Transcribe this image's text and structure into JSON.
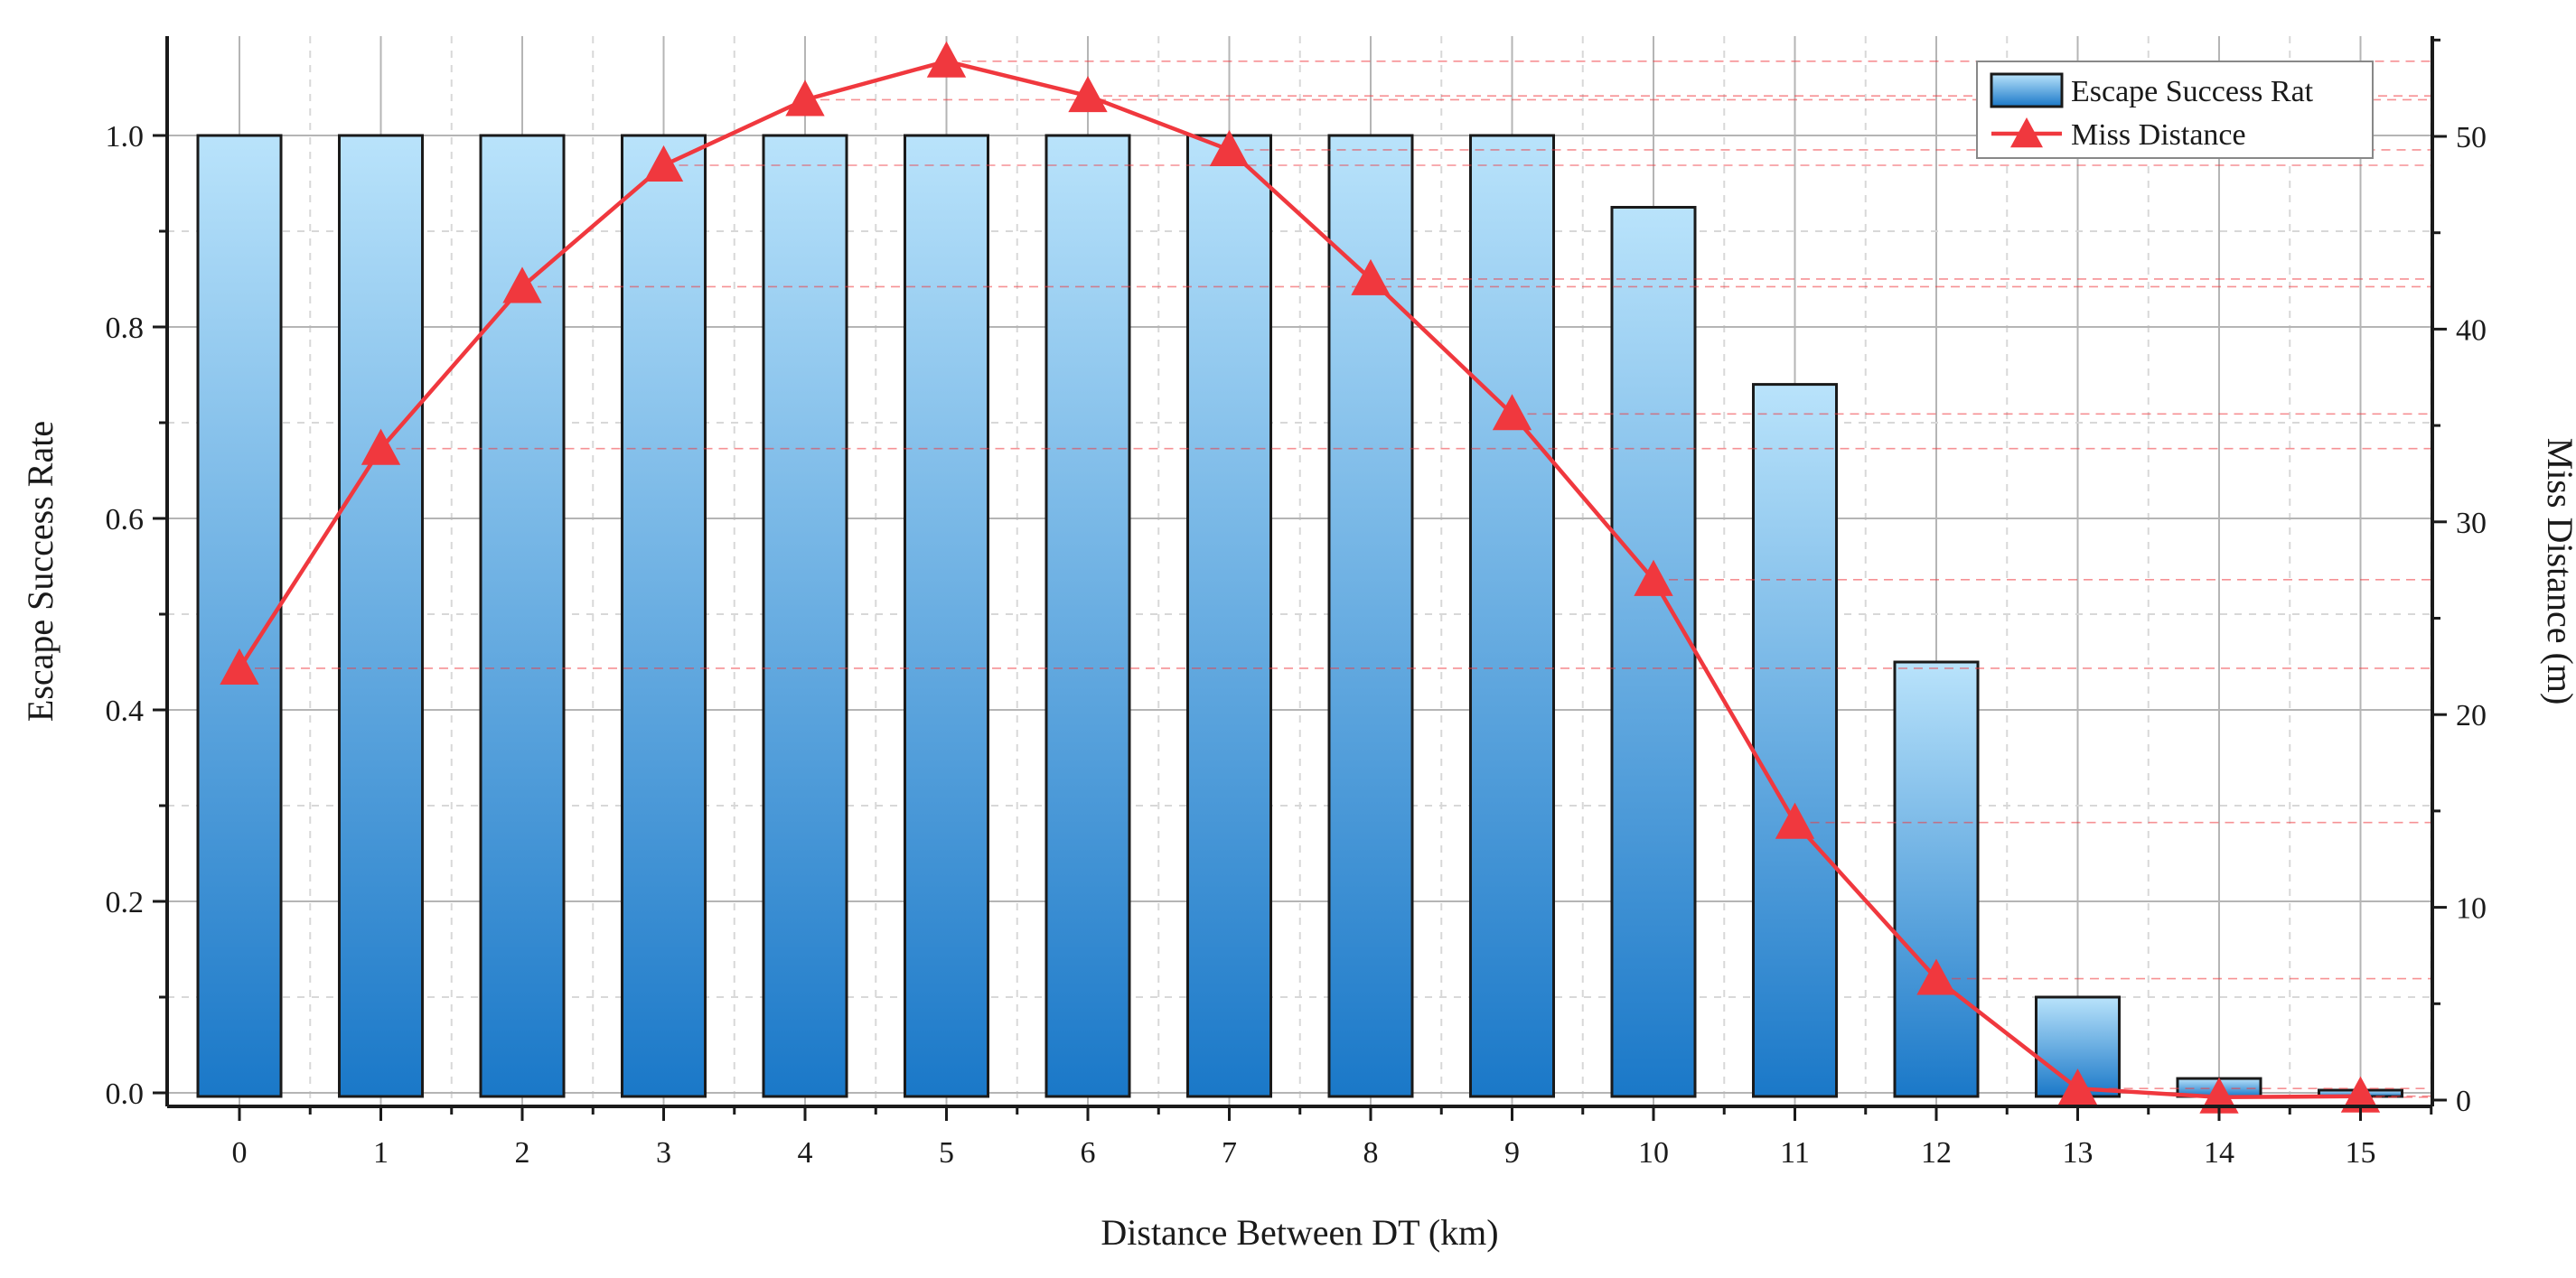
{
  "chart_data": {
    "type": "bar+line",
    "title": "",
    "xlabel": "Distance Between DT (km)",
    "ylabel_left": "Escape Success Rate",
    "ylabel_right": "Miss Distance (m)",
    "categories": [
      "0",
      "1",
      "2",
      "3",
      "4",
      "5",
      "6",
      "7",
      "8",
      "9",
      "10",
      "11",
      "12",
      "13",
      "14",
      "15"
    ],
    "ylim_left": [
      0,
      1.1
    ],
    "ylim_right": [
      0,
      55
    ],
    "yticks_left": [
      "0.0",
      "0.2",
      "0.4",
      "0.6",
      "0.8",
      "1.0"
    ],
    "yticks_right": [
      "0",
      "10",
      "20",
      "30",
      "40",
      "50"
    ],
    "grid": true,
    "legend_position": "top-right",
    "series": [
      {
        "name": "Escape Success Rat",
        "type": "bar",
        "axis": "left",
        "values": [
          1.0,
          1.0,
          1.0,
          1.0,
          1.0,
          1.0,
          1.0,
          1.0,
          1.0,
          1.0,
          0.925,
          0.74,
          0.45,
          0.1,
          0.015,
          0.0
        ],
        "color_top": "#b9e3fb",
        "color_bottom": "#1a78c8"
      },
      {
        "name": "Miss Distance",
        "type": "line",
        "axis": "right",
        "marker": "triangle",
        "values": [
          22.4,
          33.8,
          42.2,
          48.5,
          51.9,
          53.9,
          52.1,
          49.3,
          42.6,
          35.6,
          27.0,
          14.4,
          6.3,
          0.6,
          0.15,
          0.2
        ],
        "color": "#f0383e"
      }
    ]
  }
}
